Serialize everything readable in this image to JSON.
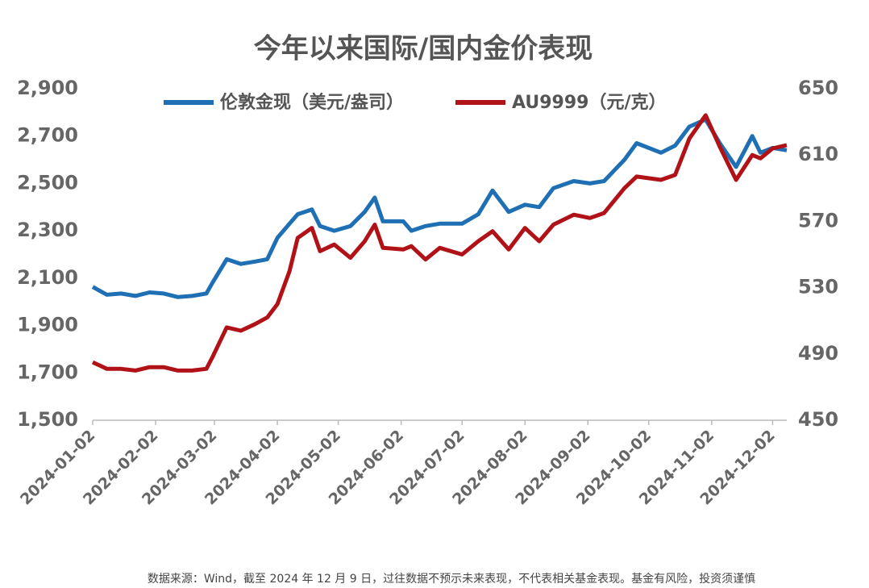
{
  "chart_data": {
    "type": "line",
    "title": "今年以来国际/国内金价表现",
    "footnote": "数据来源：Wind，截至 2024 年 12 月 9 日，过往数据不预示未来表现，不代表相关基金表现。基金有风险，投资须谨慎",
    "x": [
      "2024-01-02",
      "2024-01-09",
      "2024-01-16",
      "2024-01-23",
      "2024-01-30",
      "2024-02-06",
      "2024-02-13",
      "2024-02-20",
      "2024-02-27",
      "2024-03-01",
      "2024-03-08",
      "2024-03-15",
      "2024-03-22",
      "2024-03-28",
      "2024-04-02",
      "2024-04-08",
      "2024-04-12",
      "2024-04-19",
      "2024-04-23",
      "2024-04-30",
      "2024-05-08",
      "2024-05-15",
      "2024-05-20",
      "2024-05-24",
      "2024-06-03",
      "2024-06-07",
      "2024-06-14",
      "2024-06-21",
      "2024-07-02",
      "2024-07-10",
      "2024-07-17",
      "2024-07-25",
      "2024-08-02",
      "2024-08-09",
      "2024-08-16",
      "2024-08-26",
      "2024-09-03",
      "2024-09-10",
      "2024-09-20",
      "2024-09-26",
      "2024-10-08",
      "2024-10-15",
      "2024-10-22",
      "2024-10-30",
      "2024-11-06",
      "2024-11-14",
      "2024-11-22",
      "2024-11-26",
      "2024-12-02",
      "2024-12-09"
    ],
    "series": [
      {
        "name": "伦敦金现（美元/盎司）",
        "color": "#1f6fb5",
        "axis": "y",
        "values": [
          2063,
          2030,
          2035,
          2025,
          2040,
          2035,
          2020,
          2025,
          2035,
          2080,
          2180,
          2160,
          2170,
          2180,
          2270,
          2330,
          2370,
          2390,
          2320,
          2300,
          2320,
          2380,
          2440,
          2340,
          2340,
          2300,
          2320,
          2330,
          2330,
          2370,
          2470,
          2380,
          2410,
          2400,
          2480,
          2510,
          2500,
          2510,
          2600,
          2670,
          2630,
          2660,
          2740,
          2770,
          2670,
          2570,
          2700,
          2630,
          2650,
          2640
        ]
      },
      {
        "name": "AU9999（元/克）",
        "color": "#b01217",
        "axis": "y2",
        "values": [
          485,
          481,
          481,
          480,
          482,
          482,
          480,
          480,
          481,
          488,
          506,
          504,
          508,
          512,
          520,
          540,
          560,
          566,
          552,
          556,
          548,
          558,
          568,
          554,
          553,
          555,
          547,
          554,
          550,
          558,
          564,
          553,
          566,
          558,
          568,
          574,
          572,
          575,
          590,
          597,
          595,
          598,
          620,
          634,
          615,
          595,
          610,
          608,
          614,
          616
        ]
      }
    ],
    "xlim": [
      "2024-01-02",
      "2024-12-09"
    ],
    "xticks": [
      "2024-01-02",
      "2024-02-02",
      "2024-03-02",
      "2024-04-02",
      "2024-05-02",
      "2024-06-02",
      "2024-07-02",
      "2024-08-02",
      "2024-09-02",
      "2024-10-02",
      "2024-11-02",
      "2024-12-02"
    ],
    "ylim": [
      1500,
      2900
    ],
    "yticks": [
      {
        "value": 1500,
        "label": "1,500"
      },
      {
        "value": 1700,
        "label": "1,700"
      },
      {
        "value": 1900,
        "label": "1,900"
      },
      {
        "value": 2100,
        "label": "2,100"
      },
      {
        "value": 2300,
        "label": "2,300"
      },
      {
        "value": 2500,
        "label": "2,500"
      },
      {
        "value": 2700,
        "label": "2,700"
      },
      {
        "value": 2900,
        "label": "2,900"
      }
    ],
    "y2lim": [
      450,
      650
    ],
    "y2ticks": [
      450,
      490,
      530,
      570,
      610,
      650
    ],
    "legend": "top"
  }
}
